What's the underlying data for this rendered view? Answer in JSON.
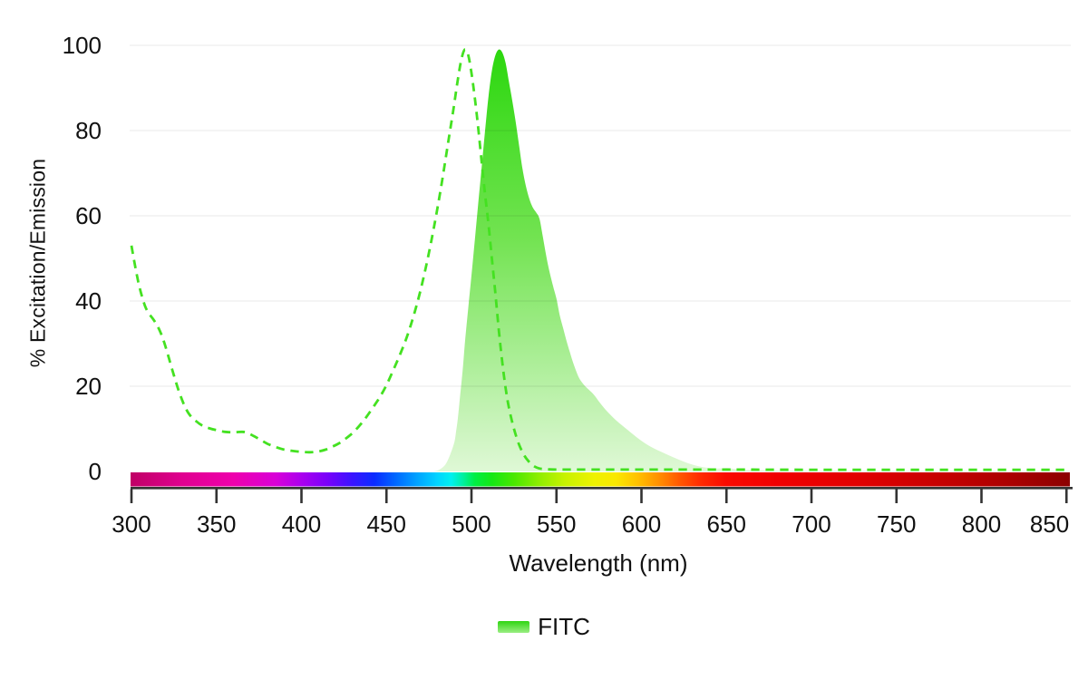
{
  "chart_data": {
    "type": "area",
    "title": "",
    "xlabel": "Wavelength (nm)",
    "ylabel": "% Excitation/Emission",
    "xlim": [
      300,
      852
    ],
    "ylim": [
      0,
      100
    ],
    "x_ticks": [
      300,
      350,
      400,
      450,
      500,
      550,
      600,
      650,
      700,
      750,
      800,
      850
    ],
    "y_ticks": [
      0,
      20,
      40,
      60,
      80,
      100
    ],
    "grid": "horizontal",
    "legend_position": "bottom-center",
    "legend": [
      {
        "label": "FITC",
        "swatch_top": "#2FD512",
        "swatch_bottom": "#9BEE83"
      }
    ],
    "series": [
      {
        "name": "FITC excitation",
        "type": "line",
        "line_style": "dashed",
        "color": "#44E121",
        "peak_nm": 495,
        "points": [
          [
            300,
            53
          ],
          [
            302,
            48.5
          ],
          [
            304,
            44.5
          ],
          [
            306,
            41.3
          ],
          [
            308,
            38.8
          ],
          [
            310,
            37.2
          ],
          [
            313,
            35.6
          ],
          [
            316,
            33.6
          ],
          [
            319,
            30.6
          ],
          [
            322,
            26.6
          ],
          [
            325,
            22.5
          ],
          [
            328,
            18.7
          ],
          [
            331,
            15.6
          ],
          [
            334,
            13.4
          ],
          [
            338,
            11.8
          ],
          [
            342,
            10.7
          ],
          [
            346,
            10.1
          ],
          [
            350,
            9.7
          ],
          [
            355,
            9.3
          ],
          [
            360,
            9.2
          ],
          [
            365,
            9.3
          ],
          [
            368,
            9.1
          ],
          [
            372,
            8.3
          ],
          [
            376,
            7.4
          ],
          [
            380,
            6.5
          ],
          [
            385,
            5.7
          ],
          [
            390,
            5.1
          ],
          [
            395,
            4.8
          ],
          [
            400,
            4.6
          ],
          [
            405,
            4.5
          ],
          [
            410,
            4.7
          ],
          [
            414,
            5.1
          ],
          [
            418,
            5.8
          ],
          [
            422,
            6.6
          ],
          [
            426,
            7.7
          ],
          [
            430,
            9
          ],
          [
            434,
            10.7
          ],
          [
            438,
            12.7
          ],
          [
            442,
            15
          ],
          [
            446,
            17.4
          ],
          [
            450,
            20.3
          ],
          [
            454,
            23.8
          ],
          [
            458,
            27.5
          ],
          [
            462,
            31.6
          ],
          [
            466,
            36.6
          ],
          [
            470,
            42.5
          ],
          [
            474,
            49.5
          ],
          [
            478,
            57.5
          ],
          [
            482,
            66.5
          ],
          [
            486,
            76.5
          ],
          [
            489,
            84
          ],
          [
            492,
            92
          ],
          [
            494,
            96.6
          ],
          [
            496,
            99
          ],
          [
            498,
            97.8
          ],
          [
            500,
            93.5
          ],
          [
            502,
            87.5
          ],
          [
            504,
            80.5
          ],
          [
            506,
            72.5
          ],
          [
            508,
            65
          ],
          [
            510,
            58
          ],
          [
            512,
            50
          ],
          [
            514,
            42
          ],
          [
            516,
            33.5
          ],
          [
            518,
            26
          ],
          [
            520,
            19.8
          ],
          [
            522,
            15
          ],
          [
            525,
            10
          ],
          [
            528,
            6.3
          ],
          [
            531,
            3.8
          ],
          [
            534,
            2.2
          ],
          [
            537,
            1.2
          ],
          [
            540,
            0.7
          ],
          [
            545,
            0.5
          ],
          [
            555,
            0.45
          ],
          [
            600,
            0.45
          ],
          [
            650,
            0.45
          ],
          [
            700,
            0.4
          ],
          [
            780,
            0.4
          ],
          [
            852,
            0.4
          ]
        ]
      },
      {
        "name": "FITC emission",
        "type": "area",
        "gradient_top": "#2AD70D",
        "gradient_mid": "#72E351",
        "gradient_bottom": "#DFF8D6",
        "peak_nm": 517,
        "points": [
          [
            478,
            0
          ],
          [
            481,
            0.4
          ],
          [
            484,
            1.3
          ],
          [
            486,
            2.6
          ],
          [
            488,
            4.5
          ],
          [
            490,
            7
          ],
          [
            491,
            9.5
          ],
          [
            492,
            12.5
          ],
          [
            493,
            16.5
          ],
          [
            494,
            20.5
          ],
          [
            495,
            24.5
          ],
          [
            496,
            29.5
          ],
          [
            498,
            38
          ],
          [
            500,
            46
          ],
          [
            502,
            54.5
          ],
          [
            504,
            63
          ],
          [
            506,
            71.5
          ],
          [
            508,
            80
          ],
          [
            510,
            88
          ],
          [
            512,
            94
          ],
          [
            514,
            97.6
          ],
          [
            516,
            99
          ],
          [
            518,
            98.4
          ],
          [
            520,
            96
          ],
          [
            522,
            91.5
          ],
          [
            524,
            87
          ],
          [
            526,
            82
          ],
          [
            528,
            76.5
          ],
          [
            530,
            71
          ],
          [
            532,
            67
          ],
          [
            534,
            64
          ],
          [
            536,
            62
          ],
          [
            538,
            60.8
          ],
          [
            540,
            59.3
          ],
          [
            542,
            55
          ],
          [
            545,
            48.5
          ],
          [
            548,
            43.5
          ],
          [
            550,
            40.5
          ],
          [
            552,
            36.5
          ],
          [
            554,
            33.5
          ],
          [
            556,
            30.5
          ],
          [
            558,
            27.8
          ],
          [
            560,
            25.3
          ],
          [
            563,
            22.2
          ],
          [
            566,
            20.4
          ],
          [
            569,
            19.2
          ],
          [
            572,
            18
          ],
          [
            575,
            16.4
          ],
          [
            578,
            14.9
          ],
          [
            581,
            13.6
          ],
          [
            584,
            12.4
          ],
          [
            588,
            11
          ],
          [
            592,
            9.7
          ],
          [
            596,
            8.4
          ],
          [
            600,
            7.2
          ],
          [
            605,
            5.9
          ],
          [
            610,
            4.9
          ],
          [
            615,
            4
          ],
          [
            620,
            3.1
          ],
          [
            625,
            2.3
          ],
          [
            630,
            1.6
          ],
          [
            635,
            1.1
          ],
          [
            640,
            0.8
          ],
          [
            645,
            0.7
          ],
          [
            650,
            0.8
          ],
          [
            655,
            0.6
          ],
          [
            660,
            0.4
          ],
          [
            670,
            0.3
          ],
          [
            685,
            0.2
          ],
          [
            710,
            0.15
          ],
          [
            760,
            0.1
          ],
          [
            852,
            0.1
          ]
        ]
      }
    ],
    "wavelength_colorbar": {
      "position": "x-axis",
      "stops": [
        [
          300,
          "#C00066"
        ],
        [
          330,
          "#E00090"
        ],
        [
          360,
          "#EE00AC"
        ],
        [
          385,
          "#D800D8"
        ],
        [
          400,
          "#AA00EE"
        ],
        [
          415,
          "#7A00FA"
        ],
        [
          430,
          "#3A14FF"
        ],
        [
          443,
          "#0A2CFF"
        ],
        [
          455,
          "#0066FF"
        ],
        [
          468,
          "#00A2FF"
        ],
        [
          480,
          "#00D4FF"
        ],
        [
          488,
          "#00F0F0"
        ],
        [
          495,
          "#00F0A0"
        ],
        [
          502,
          "#00EE44"
        ],
        [
          512,
          "#15E815"
        ],
        [
          525,
          "#4AE800"
        ],
        [
          540,
          "#90EE00"
        ],
        [
          555,
          "#C8F200"
        ],
        [
          572,
          "#EEF200"
        ],
        [
          585,
          "#FAE800"
        ],
        [
          598,
          "#FFC000"
        ],
        [
          610,
          "#FF9000"
        ],
        [
          622,
          "#FF5A00"
        ],
        [
          635,
          "#FF2A00"
        ],
        [
          650,
          "#FA0A00"
        ],
        [
          680,
          "#F00000"
        ],
        [
          730,
          "#E00000"
        ],
        [
          780,
          "#C40000"
        ],
        [
          820,
          "#A80000"
        ],
        [
          852,
          "#8C0000"
        ]
      ]
    }
  },
  "style": {
    "axis_color": "#333333",
    "tick_text_color": "#111111",
    "grid_color": "rgba(0,0,0,0.075)",
    "background": "#ffffff"
  }
}
